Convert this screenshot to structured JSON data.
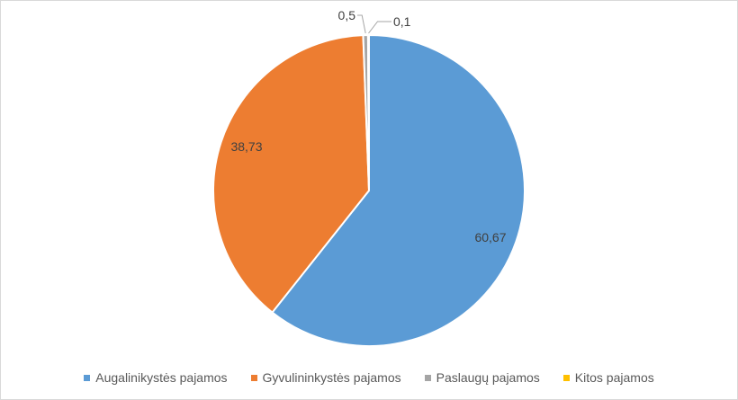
{
  "chart_data": {
    "type": "pie",
    "title": "",
    "series": [
      {
        "name": "Augalinikystės pajamos",
        "value": 60.67,
        "label": "60,67",
        "color": "#5b9bd5"
      },
      {
        "name": "Gyvulininkystės pajamos",
        "value": 38.73,
        "label": "38,73",
        "color": "#ed7d31"
      },
      {
        "name": "Paslaugų pajamos",
        "value": 0.5,
        "label": "0,5",
        "color": "#a5a5a5"
      },
      {
        "name": "Kitos pajamos",
        "value": 0.1,
        "label": "0,1",
        "color": "#ffc000"
      }
    ],
    "legend_position": "bottom",
    "start_angle_deg": 0,
    "direction": "clockwise"
  }
}
